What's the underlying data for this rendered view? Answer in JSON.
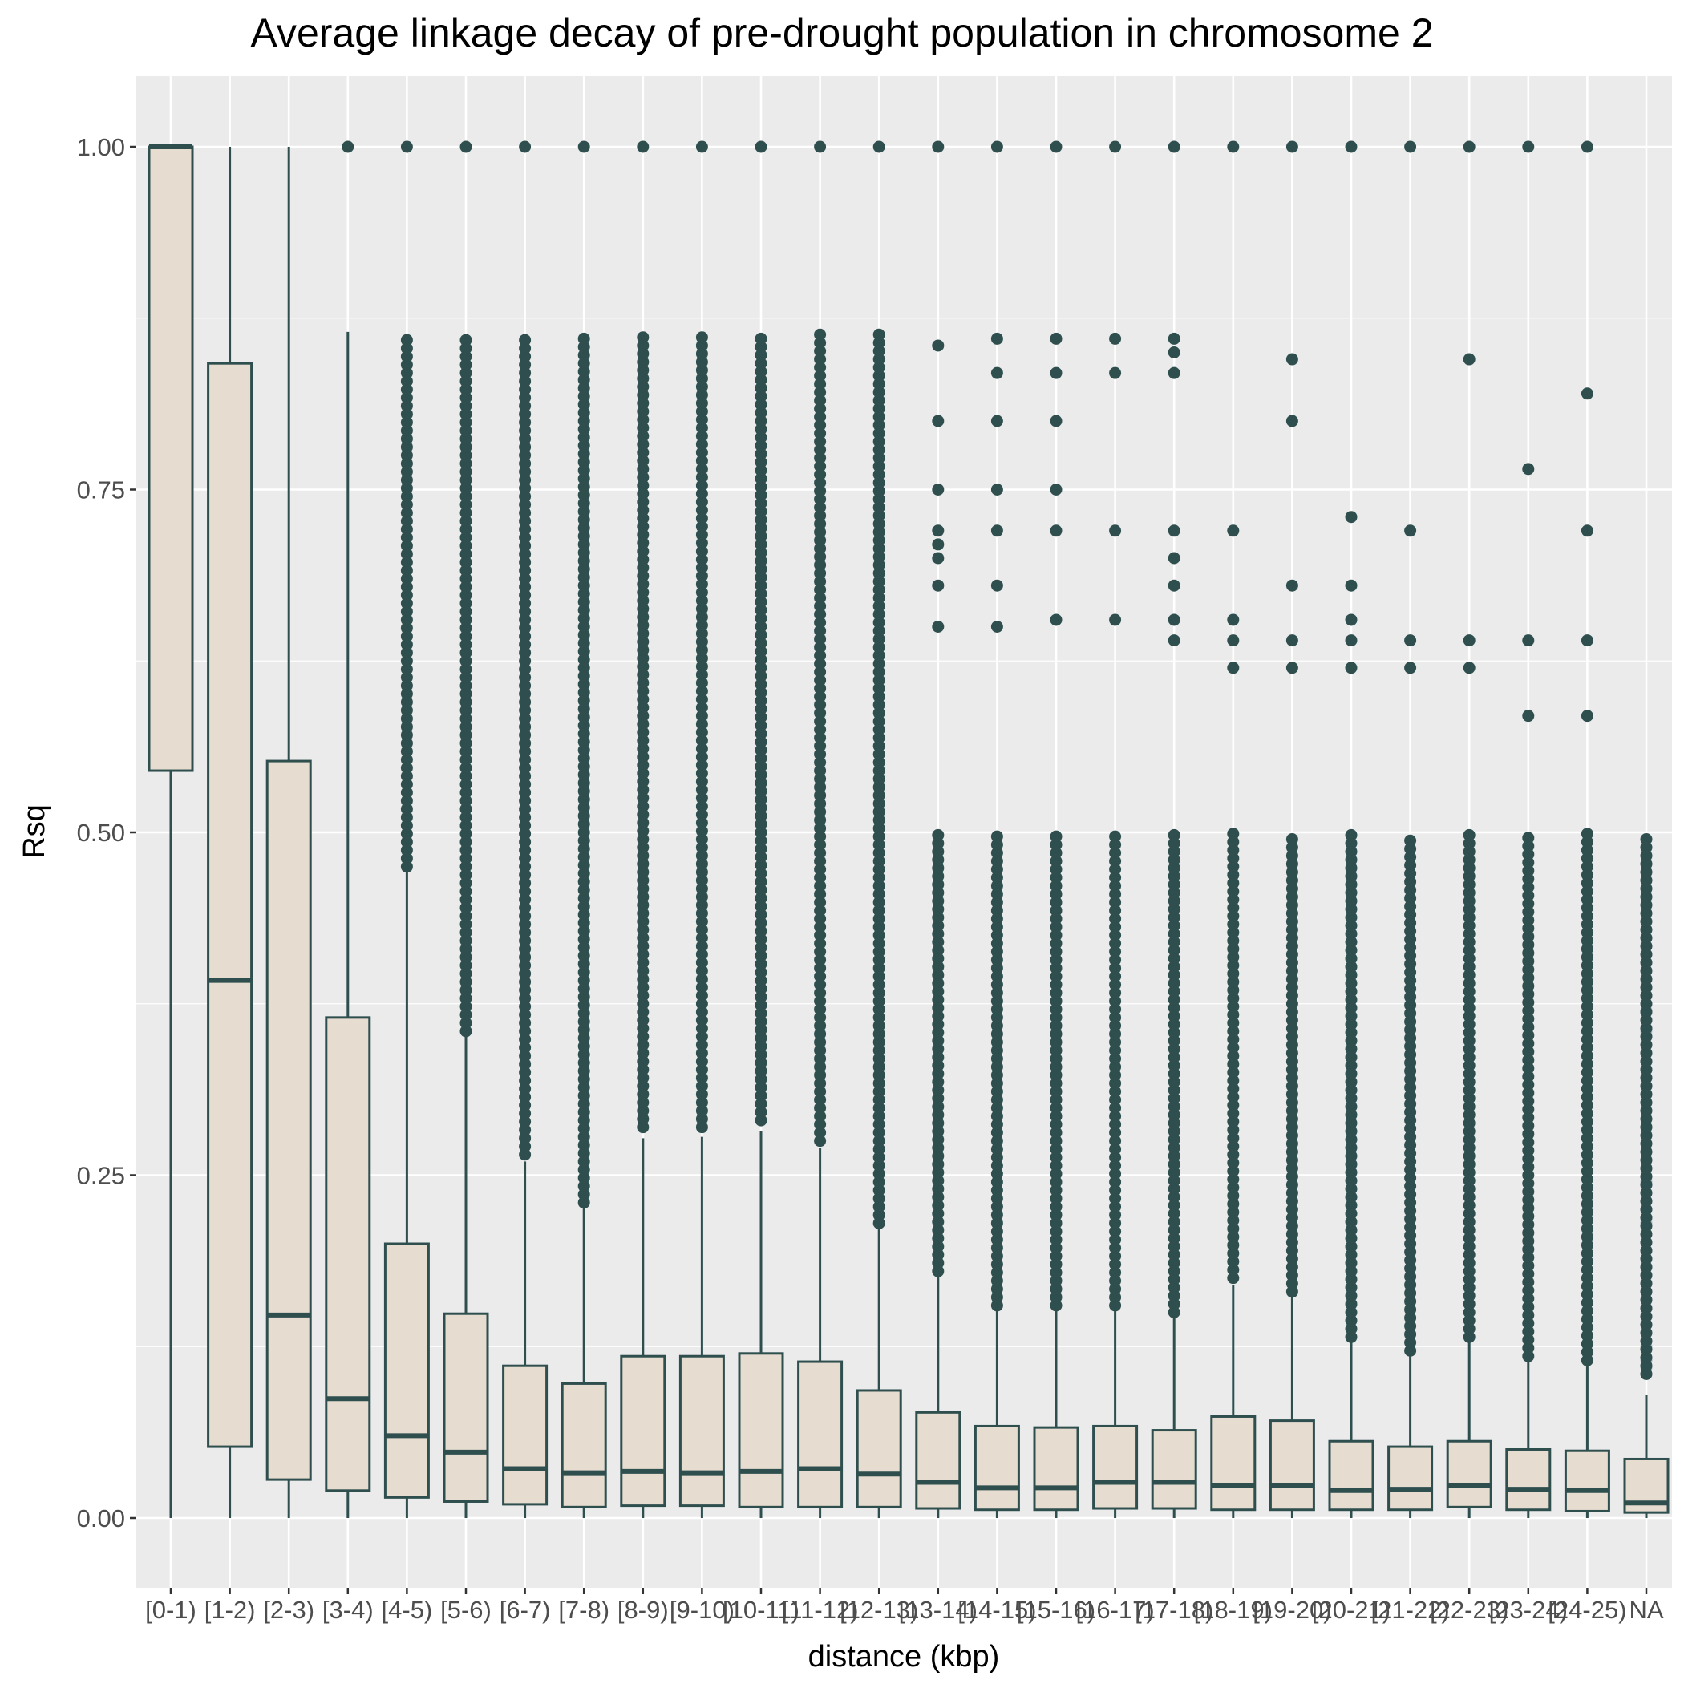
{
  "chart_data": {
    "type": "box",
    "title": "Average linkage decay of pre-drought population in chromosome  2",
    "xlabel": "distance (kbp)",
    "ylabel": "Rsq",
    "ylim": [
      -0.05,
      1.05
    ],
    "yticks": [
      "0.00",
      "0.25",
      "0.50",
      "0.75",
      "1.00"
    ],
    "colors": {
      "panel": "#ebebeb",
      "grid": "#ffffff",
      "box_fill": "#e6dccf",
      "box_line": "#2f4f4f",
      "outlier": "#2f4f4f"
    },
    "categories": [
      "[0-1)",
      "[1-2)",
      "[2-3)",
      "[3-4)",
      "[4-5)",
      "[5-6)",
      "[6-7)",
      "[7-8)",
      "[8-9)",
      "[9-10)",
      "[10-11)",
      "[11-12)",
      "[12-13)",
      "[13-14)",
      "[14-15)",
      "[15-16)",
      "[16-17)",
      "[17-18)",
      "[18-19)",
      "[19-20)",
      "[20-21)",
      "[21-22)",
      "[22-23)",
      "[23-24)",
      "[24-25)",
      "NA"
    ],
    "boxes": [
      {
        "low": 0.0,
        "q1": 0.545,
        "median": 1.0,
        "q3": 1.0,
        "high": 1.0,
        "outlier_min": null
      },
      {
        "low": 0.0,
        "q1": 0.052,
        "median": 0.392,
        "q3": 0.842,
        "high": 1.0,
        "outlier_min": null
      },
      {
        "low": 0.0,
        "q1": 0.028,
        "median": 0.148,
        "q3": 0.552,
        "high": 1.0,
        "outlier_min": null
      },
      {
        "low": 0.0,
        "q1": 0.02,
        "median": 0.087,
        "q3": 0.365,
        "high": 0.865,
        "outlier_min": 1.0
      },
      {
        "low": 0.0,
        "q1": 0.015,
        "median": 0.06,
        "q3": 0.2,
        "high": 0.475,
        "outlier_min": 0.475
      },
      {
        "low": 0.0,
        "q1": 0.012,
        "median": 0.048,
        "q3": 0.149,
        "high": 0.355,
        "outlier_min": 0.355
      },
      {
        "low": 0.0,
        "q1": 0.01,
        "median": 0.036,
        "q3": 0.111,
        "high": 0.26,
        "outlier_min": 0.265
      },
      {
        "low": 0.0,
        "q1": 0.008,
        "median": 0.033,
        "q3": 0.098,
        "high": 0.228,
        "outlier_min": 0.23
      },
      {
        "low": 0.0,
        "q1": 0.009,
        "median": 0.034,
        "q3": 0.118,
        "high": 0.277,
        "outlier_min": 0.285
      },
      {
        "low": 0.0,
        "q1": 0.009,
        "median": 0.033,
        "q3": 0.118,
        "high": 0.278,
        "outlier_min": 0.285
      },
      {
        "low": 0.0,
        "q1": 0.008,
        "median": 0.034,
        "q3": 0.12,
        "high": 0.282,
        "outlier_min": 0.29
      },
      {
        "low": 0.0,
        "q1": 0.008,
        "median": 0.036,
        "q3": 0.114,
        "high": 0.27,
        "outlier_min": 0.275
      },
      {
        "low": 0.0,
        "q1": 0.008,
        "median": 0.032,
        "q3": 0.093,
        "high": 0.212,
        "outlier_min": 0.215
      },
      {
        "low": 0.0,
        "q1": 0.007,
        "median": 0.026,
        "q3": 0.077,
        "high": 0.176,
        "outlier_min": 0.18
      },
      {
        "low": 0.0,
        "q1": 0.006,
        "median": 0.022,
        "q3": 0.067,
        "high": 0.152,
        "outlier_min": 0.155
      },
      {
        "low": 0.0,
        "q1": 0.006,
        "median": 0.022,
        "q3": 0.066,
        "high": 0.152,
        "outlier_min": 0.155
      },
      {
        "low": 0.0,
        "q1": 0.007,
        "median": 0.026,
        "q3": 0.067,
        "high": 0.152,
        "outlier_min": 0.155
      },
      {
        "low": 0.0,
        "q1": 0.007,
        "median": 0.026,
        "q3": 0.064,
        "high": 0.148,
        "outlier_min": 0.15
      },
      {
        "low": 0.0,
        "q1": 0.006,
        "median": 0.024,
        "q3": 0.074,
        "high": 0.17,
        "outlier_min": 0.175
      },
      {
        "low": 0.0,
        "q1": 0.006,
        "median": 0.024,
        "q3": 0.071,
        "high": 0.162,
        "outlier_min": 0.165
      },
      {
        "low": 0.0,
        "q1": 0.006,
        "median": 0.02,
        "q3": 0.056,
        "high": 0.13,
        "outlier_min": 0.132
      },
      {
        "low": 0.0,
        "q1": 0.006,
        "median": 0.021,
        "q3": 0.052,
        "high": 0.12,
        "outlier_min": 0.122
      },
      {
        "low": 0.0,
        "q1": 0.008,
        "median": 0.024,
        "q3": 0.056,
        "high": 0.13,
        "outlier_min": 0.132
      },
      {
        "low": 0.0,
        "q1": 0.006,
        "median": 0.021,
        "q3": 0.05,
        "high": 0.115,
        "outlier_min": 0.118
      },
      {
        "low": 0.0,
        "q1": 0.005,
        "median": 0.02,
        "q3": 0.049,
        "high": 0.112,
        "outlier_min": 0.115
      },
      {
        "low": 0.0,
        "q1": 0.004,
        "median": 0.011,
        "q3": 0.043,
        "high": 0.09,
        "outlier_min": 0.105
      }
    ],
    "sparse_outliers": [
      [],
      [],
      [],
      [],
      [],
      [],
      [],
      [],
      [],
      [],
      [],
      [],
      [],
      [
        1.0,
        0.855,
        0.8,
        0.75,
        0.72,
        0.71,
        0.7,
        0.68,
        0.65
      ],
      [
        1.0,
        0.86,
        0.835,
        0.8,
        0.75,
        0.72,
        0.68,
        0.65
      ],
      [
        1.0,
        0.86,
        0.835,
        0.8,
        0.75,
        0.72,
        0.655
      ],
      [
        1.0,
        0.86,
        0.835,
        0.72,
        0.655
      ],
      [
        1.0,
        0.86,
        0.85,
        0.835,
        0.72,
        0.7,
        0.68,
        0.655,
        0.64
      ],
      [
        1.0,
        0.72,
        0.655,
        0.64,
        0.62
      ],
      [
        1.0,
        0.845,
        0.8,
        0.68,
        0.64,
        0.62
      ],
      [
        1.0,
        0.73,
        0.68,
        0.655,
        0.64,
        0.62
      ],
      [
        1.0,
        0.72,
        0.64,
        0.62
      ],
      [
        1.0,
        0.845,
        0.64,
        0.62
      ],
      [
        1.0,
        0.765,
        0.64,
        0.585
      ],
      [
        1.0,
        0.82,
        0.72,
        0.64,
        0.585
      ],
      [
        0.37,
        0.355,
        0.285,
        0.245,
        0.225,
        0.215,
        0.125,
        0.115,
        0.11
      ]
    ]
  }
}
